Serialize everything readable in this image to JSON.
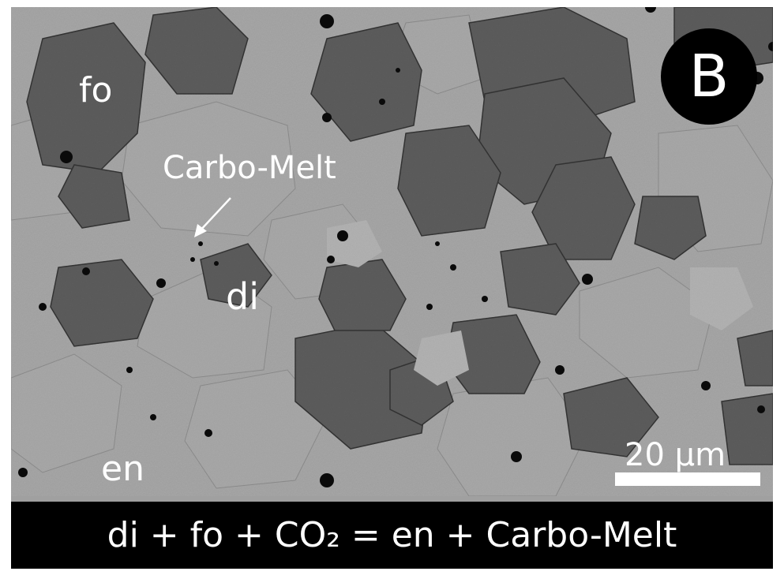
{
  "panel": {
    "letter": "B"
  },
  "labels": {
    "fo": "fo",
    "carbo_melt": "Carbo-Melt",
    "di": "di",
    "en": "en"
  },
  "scale": {
    "text": "20 µm"
  },
  "caption": {
    "reaction": "di + fo + CO₂ = en + Carbo-Melt"
  },
  "colors": {
    "background": "#000000",
    "pale_phase": "#a0a0a0",
    "medium_phase": "#9a9a9a",
    "dark_phase": "#5a5a5a",
    "pore": "#0a0a0a",
    "text": "#ffffff"
  }
}
